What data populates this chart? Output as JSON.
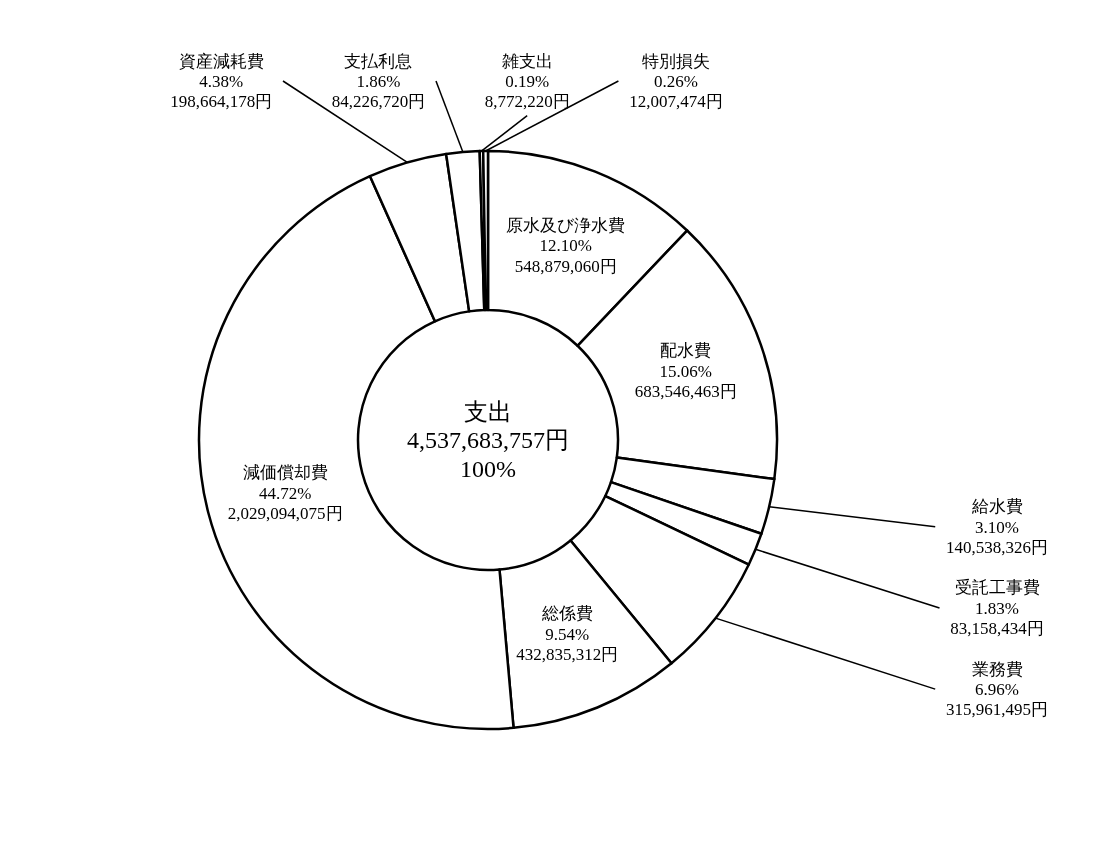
{
  "chart_data": {
    "type": "donut",
    "categories": [
      "原水及び浄水費",
      "配水費",
      "給水費",
      "受託工事費",
      "業務費",
      "総係費",
      "減価償却費",
      "資産減耗費",
      "支払利息",
      "雑支出",
      "特別損失"
    ],
    "values": [
      548879060,
      683546463,
      140538326,
      83158434,
      315961495,
      432835312,
      2029094075,
      198664178,
      84226720,
      8772220,
      12007474
    ],
    "value_labels": [
      "12.10%\n548,879,060円",
      "15.06%\n683,546,463円",
      "3.10%\n140,538,326円",
      "1.83%\n83,158,434円",
      "6.96%\n315,961,495円",
      "9.54%\n432,835,312円",
      "44.72%\n2,029,094,075円",
      "4.38%\n198,664,178円",
      "1.86%\n84,226,720円",
      "0.19%\n8,772,220円",
      "0.26%\n12,007,474円"
    ],
    "colors": [
      "#ffffff",
      "#ffffff",
      "#ffffff",
      "#ffffff",
      "#ffffff",
      "#ffffff",
      "#ffffff",
      "#ffffff",
      "#ffffff",
      "#ffffff",
      "#ffffff"
    ],
    "annotations": [
      "支出",
      "4,537,683,757円",
      "100%"
    ]
  }
}
